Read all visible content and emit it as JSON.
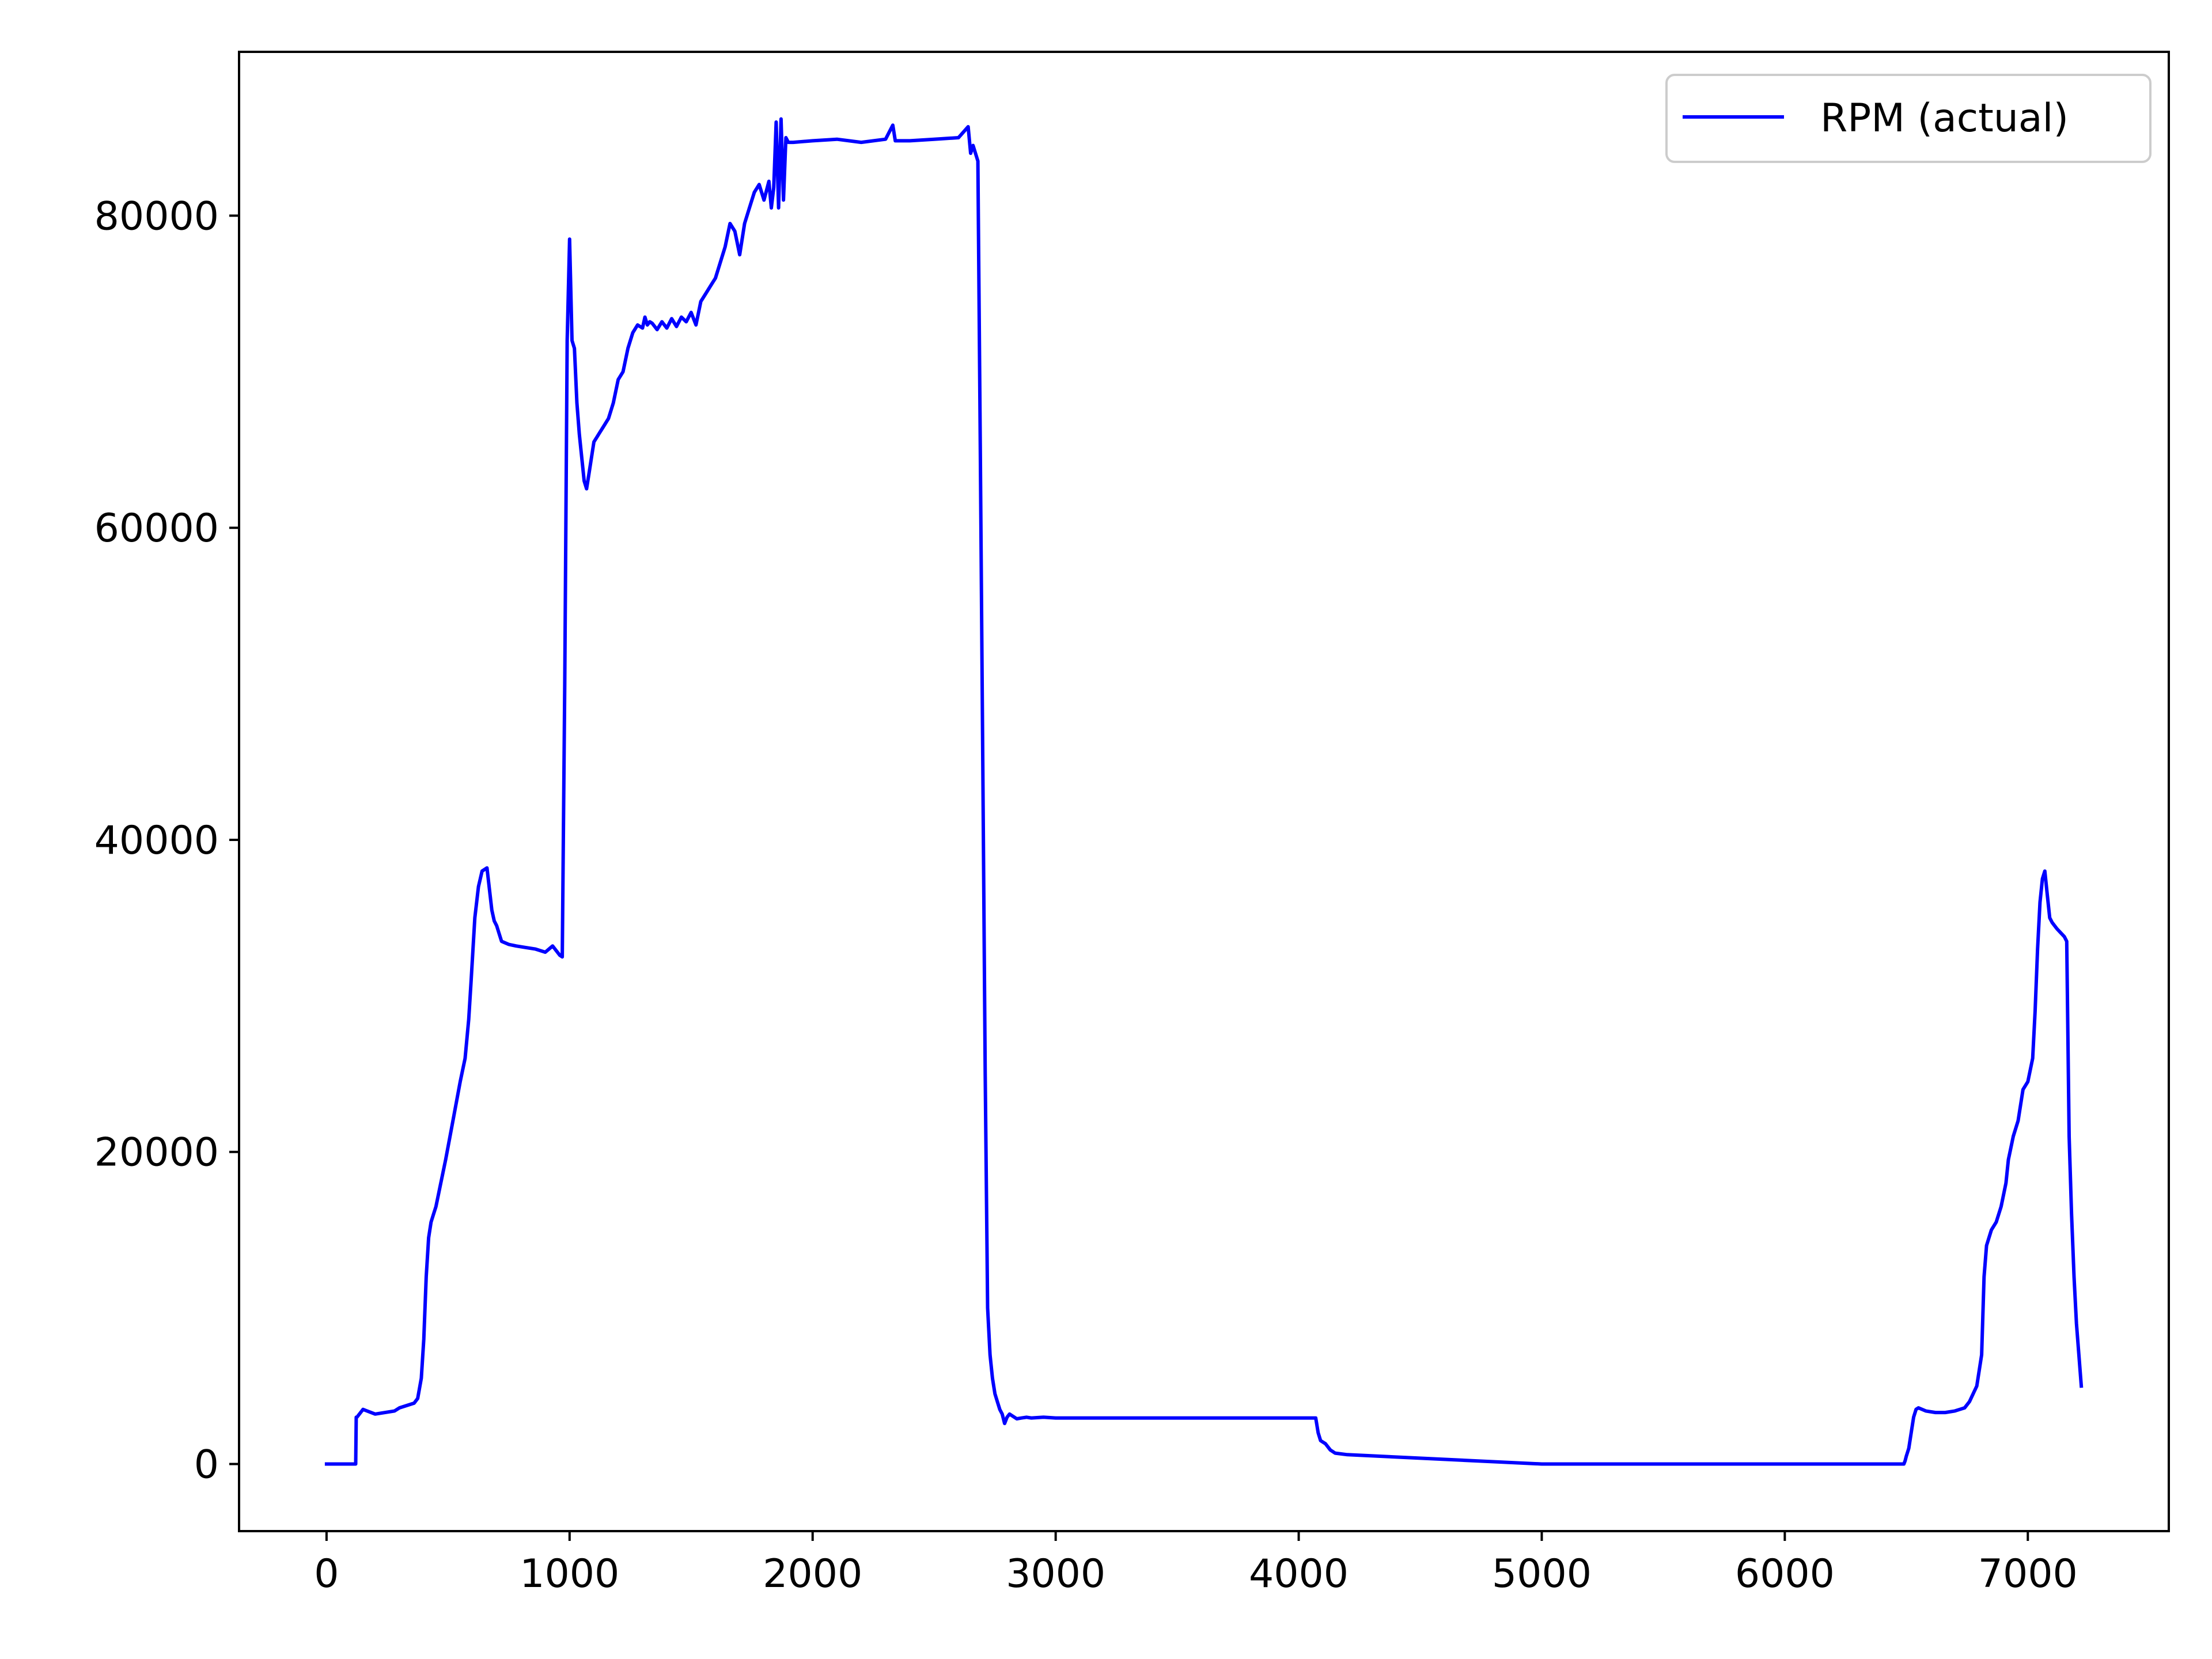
{
  "chart_data": {
    "type": "line",
    "title": "",
    "xlabel": "",
    "ylabel": "",
    "xlim": [
      -360,
      7580
    ],
    "ylim": [
      -4300,
      90500
    ],
    "grid": false,
    "legend_position": "top-right",
    "x_ticks": [
      0,
      1000,
      2000,
      3000,
      4000,
      5000,
      6000,
      7000
    ],
    "x_tick_labels": [
      "0",
      "1000",
      "2000",
      "3000",
      "4000",
      "5000",
      "6000",
      "7000"
    ],
    "y_ticks": [
      0,
      20000,
      40000,
      60000,
      80000
    ],
    "y_tick_labels": [
      "0",
      "20000",
      "40000",
      "60000",
      "80000"
    ],
    "series": [
      {
        "name": "RPM (actual)",
        "color": "#0000ff",
        "x": [
          0,
          120,
          122,
          125,
          150,
          200,
          280,
          300,
          360,
          375,
          390,
          400,
          410,
          420,
          430,
          440,
          450,
          470,
          490,
          520,
          550,
          570,
          585,
          595,
          610,
          625,
          640,
          660,
          680,
          690,
          700,
          710,
          720,
          750,
          780,
          820,
          860,
          900,
          930,
          960,
          970,
          980,
          990,
          1000,
          1010,
          1020,
          1030,
          1040,
          1050,
          1060,
          1070,
          1080,
          1090,
          1100,
          1120,
          1140,
          1160,
          1180,
          1200,
          1220,
          1240,
          1260,
          1280,
          1300,
          1310,
          1320,
          1330,
          1340,
          1360,
          1380,
          1400,
          1420,
          1440,
          1460,
          1480,
          1500,
          1520,
          1540,
          1560,
          1580,
          1600,
          1620,
          1640,
          1660,
          1680,
          1700,
          1720,
          1740,
          1760,
          1780,
          1800,
          1820,
          1830,
          1840,
          1850,
          1860,
          1870,
          1880,
          1890,
          1900,
          1920,
          2000,
          2100,
          2200,
          2300,
          2330,
          2340,
          2400,
          2500,
          2600,
          2640,
          2650,
          2660,
          2680,
          2690,
          2700,
          2710,
          2720,
          2730,
          2740,
          2750,
          2760,
          2770,
          2780,
          2790,
          2800,
          2810,
          2820,
          2830,
          2840,
          2860,
          2880,
          2900,
          2950,
          3000,
          3100,
          3500,
          4000,
          4050,
          4070,
          4080,
          4090,
          4110,
          4130,
          4150,
          4200,
          5000,
          6000,
          6450,
          6470,
          6490,
          6495,
          6500,
          6510,
          6520,
          6530,
          6540,
          6550,
          6580,
          6620,
          6660,
          6700,
          6720,
          6740,
          6760,
          6790,
          6800,
          6810,
          6820,
          6830,
          6850,
          6870,
          6890,
          6910,
          6920,
          6940,
          6960,
          6980,
          7000,
          7020,
          7030,
          7040,
          7050,
          7060,
          7070,
          7080,
          7090,
          7100,
          7120,
          7150,
          7160,
          7170,
          7180,
          7190,
          7200,
          7210,
          7220
        ],
        "values": [
          0,
          0,
          3000,
          3000,
          3500,
          3200,
          3400,
          3600,
          3900,
          4200,
          5500,
          8000,
          12000,
          14500,
          15500,
          16000,
          16500,
          18000,
          19500,
          22000,
          24500,
          26000,
          28500,
          31000,
          35000,
          37000,
          38000,
          38200,
          35500,
          34800,
          34500,
          34000,
          33500,
          33300,
          33200,
          33100,
          33000,
          32800,
          33200,
          32600,
          32500,
          50000,
          72000,
          78500,
          72000,
          71500,
          68000,
          66000,
          64500,
          63000,
          62500,
          63500,
          64500,
          65500,
          66000,
          66500,
          67000,
          68000,
          69500,
          70000,
          71500,
          72500,
          73000,
          72800,
          73500,
          73000,
          73200,
          73100,
          72700,
          73200,
          72800,
          73400,
          72900,
          73500,
          73200,
          73800,
          73000,
          74500,
          75000,
          75500,
          76000,
          77000,
          78000,
          79500,
          79000,
          77500,
          79500,
          80500,
          81500,
          82000,
          81000,
          82200,
          80500,
          81800,
          86000,
          80500,
          86200,
          81000,
          85000,
          84700,
          84700,
          84800,
          84900,
          84700,
          84900,
          85800,
          84800,
          84800,
          84900,
          85000,
          85700,
          84000,
          84500,
          83500,
          65000,
          45000,
          25000,
          10000,
          7000,
          5500,
          4500,
          4000,
          3500,
          3200,
          2600,
          3000,
          3200,
          3100,
          3000,
          2900,
          2950,
          3000,
          2950,
          3000,
          2950,
          2950,
          2950,
          2950,
          2950,
          2950,
          2000,
          1500,
          1300,
          900,
          700,
          600,
          0,
          0,
          0,
          0,
          0,
          200,
          500,
          1000,
          2000,
          3000,
          3500,
          3600,
          3400,
          3300,
          3300,
          3400,
          3500,
          3600,
          4000,
          5000,
          6000,
          7000,
          12000,
          14000,
          15000,
          15500,
          16500,
          18000,
          19500,
          21000,
          22000,
          24000,
          24500,
          26000,
          29000,
          33000,
          36000,
          37500,
          38000,
          36500,
          35000,
          34700,
          34300,
          33800,
          33500,
          21000,
          16000,
          12000,
          9000,
          7000,
          5000
        ]
      }
    ]
  }
}
